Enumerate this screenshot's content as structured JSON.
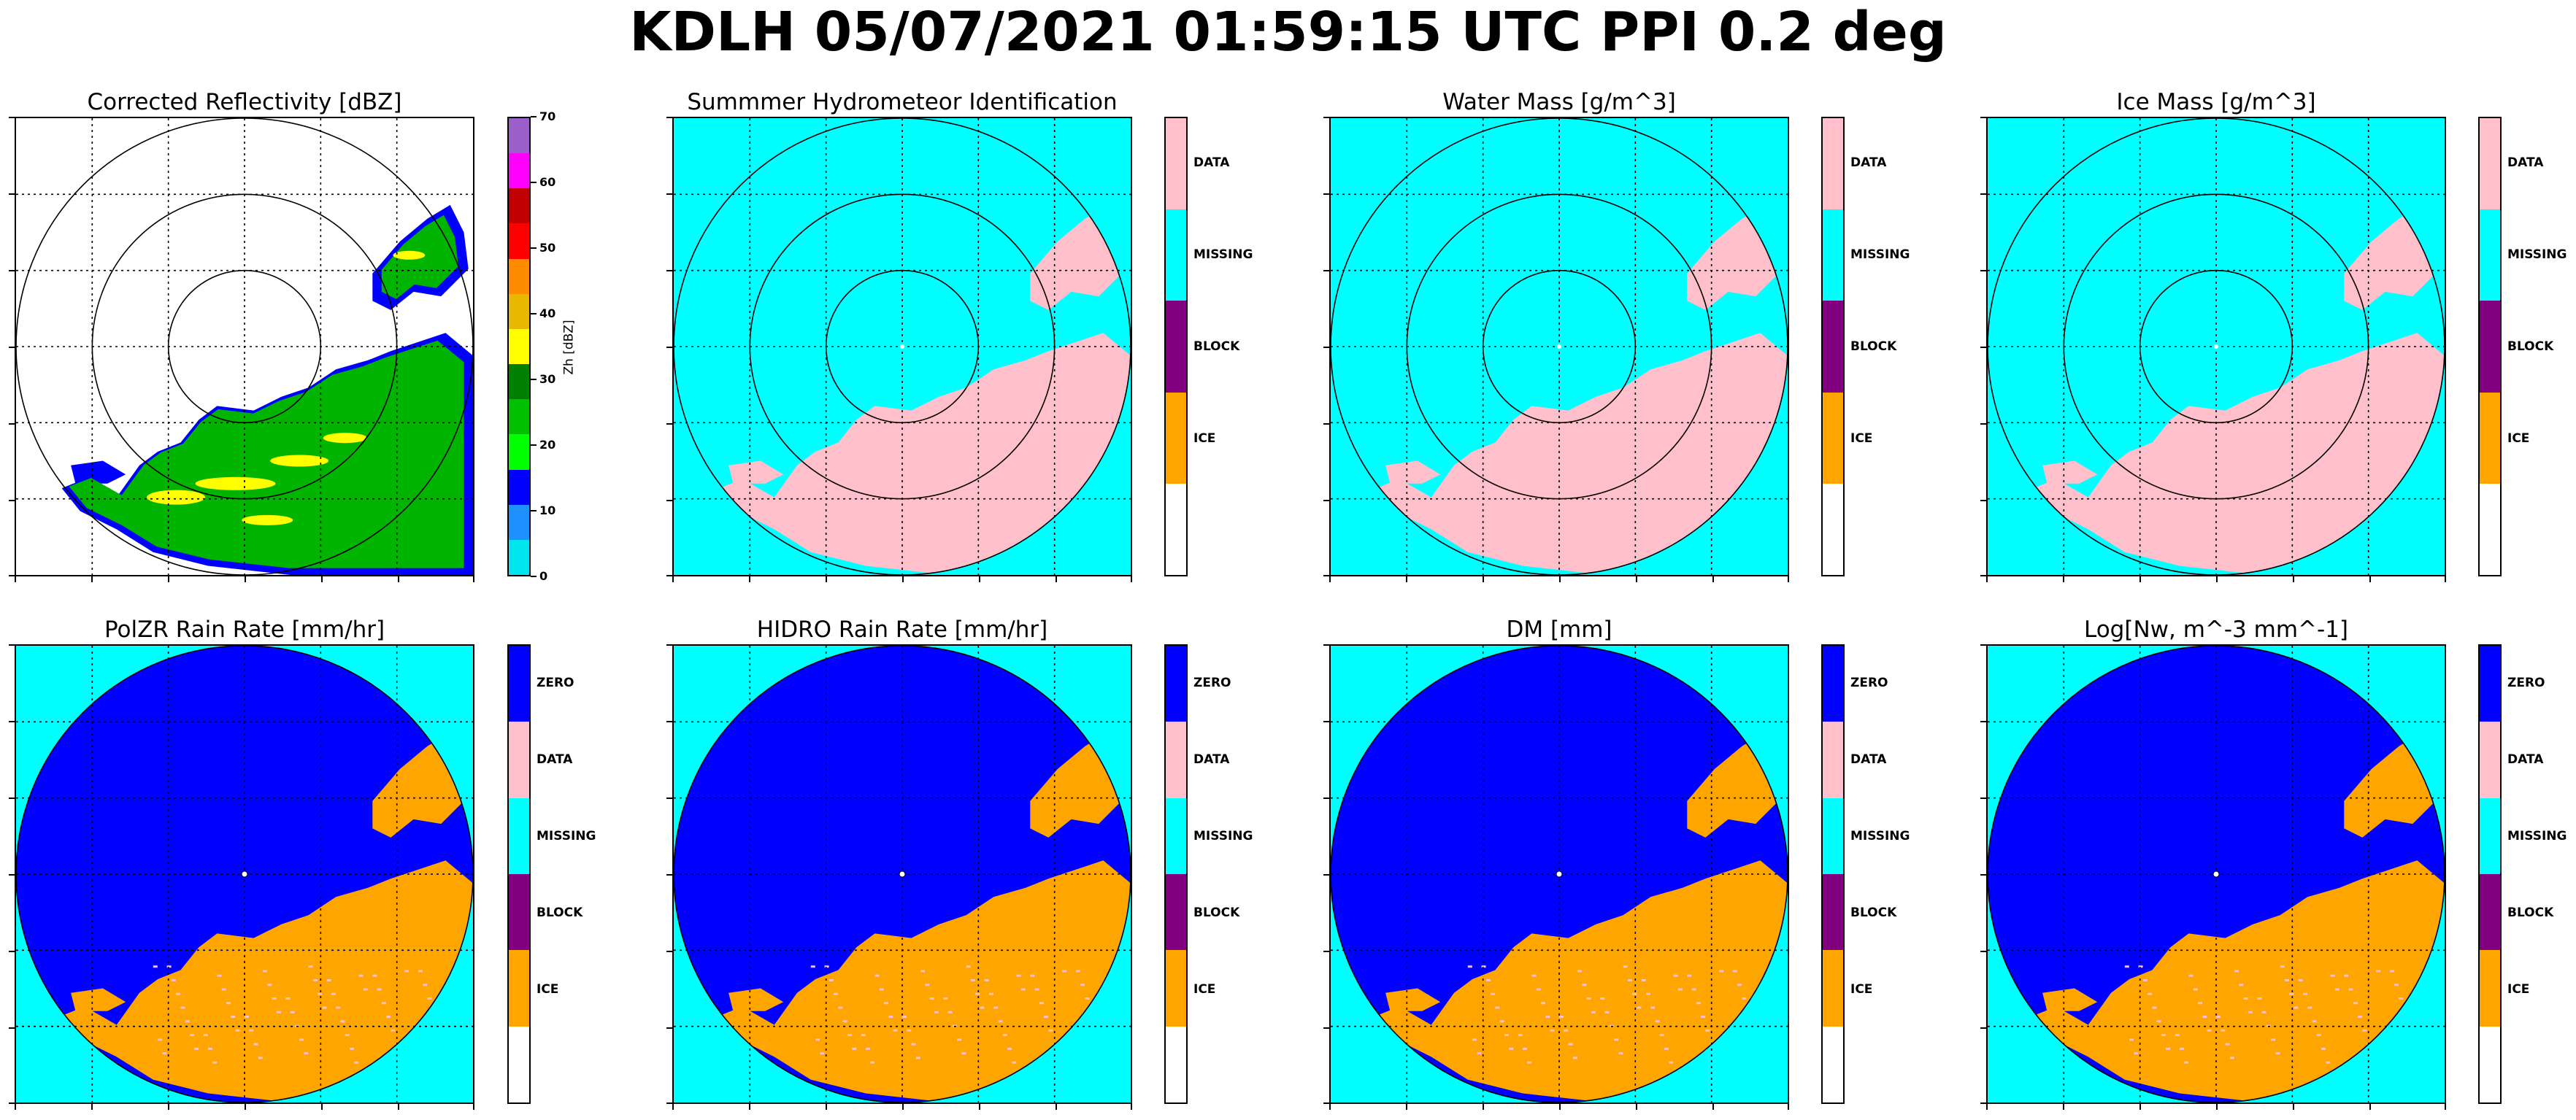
{
  "suptitle": "KDLH 05/07/2021 01:59:15 UTC PPI 0.2 deg",
  "panels": [
    {
      "title": "Corrected Reflectivity [dBZ]",
      "kind": "reflectivity"
    },
    {
      "title": "Summmer Hydrometeor Identification",
      "kind": "class4"
    },
    {
      "title": "Water Mass [g/m^3]",
      "kind": "class4"
    },
    {
      "title": "Ice Mass [g/m^3]",
      "kind": "class4"
    },
    {
      "title": "PolZR Rain Rate [mm/hr]",
      "kind": "class5"
    },
    {
      "title": "HIDRO Rain Rate [mm/hr]",
      "kind": "class5"
    },
    {
      "title": "DM [mm]",
      "kind": "class5"
    },
    {
      "title": "Log[Nw, m^-3 mm^-1]",
      "kind": "class5"
    }
  ],
  "reflectivity_colorbar": {
    "label": "Zh [dBZ]",
    "ticks": [
      "70",
      "60",
      "50",
      "40",
      "30",
      "20",
      "10",
      "0"
    ],
    "colors": [
      "#9a5fc8",
      "#ff00ff",
      "#c00000",
      "#ff0000",
      "#ff8c00",
      "#e8b800",
      "#ffff00",
      "#008000",
      "#00c000",
      "#00ff00",
      "#0000ff",
      "#1e90ff",
      "#00e5ee"
    ]
  },
  "class4_colorbar": {
    "labels": [
      "DATA",
      "MISSING",
      "BLOCK",
      "ICE"
    ],
    "colors": [
      "#ffc0cb",
      "#00ffff",
      "#800080",
      "#ffa500",
      "#ffffff"
    ]
  },
  "class5_colorbar": {
    "labels": [
      "ZERO",
      "DATA",
      "MISSING",
      "BLOCK",
      "ICE"
    ],
    "colors": [
      "#0000ff",
      "#ffc0cb",
      "#00ffff",
      "#800080",
      "#ffa500",
      "#ffffff"
    ]
  }
}
